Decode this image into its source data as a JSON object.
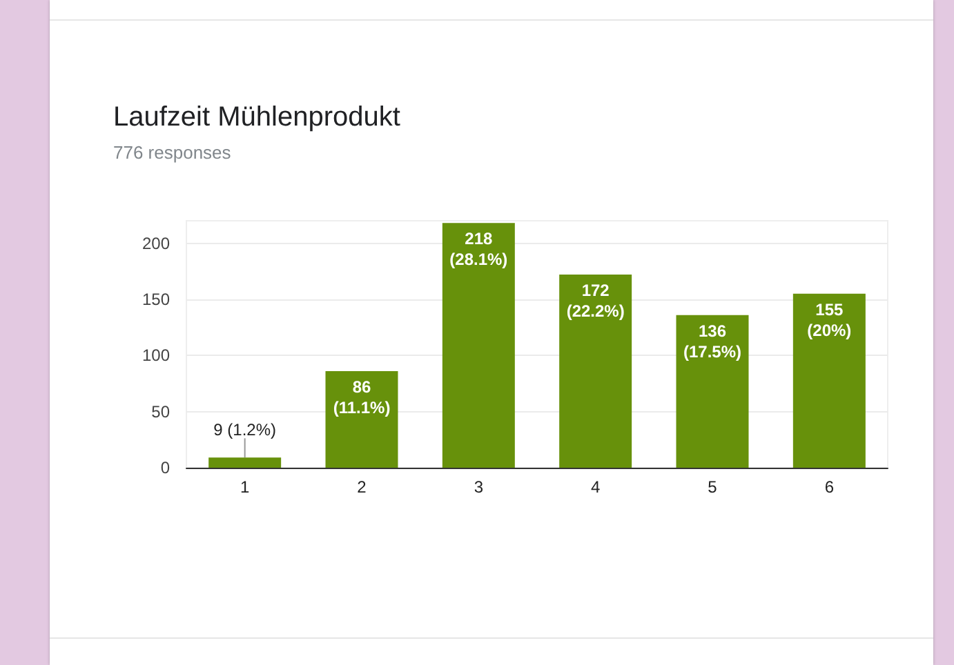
{
  "chart_data": {
    "type": "bar",
    "title": "Laufzeit Mühlenprodukt",
    "subtitle": "776 responses",
    "categories": [
      "1",
      "2",
      "3",
      "4",
      "5",
      "6"
    ],
    "values": [
      9,
      86,
      218,
      172,
      136,
      155
    ],
    "color": "#67910b",
    "value_labels": [
      "9 (1.2%)",
      "86 (11.1%)",
      "218 (28.1%)",
      "172 (22.2%)",
      "136 (17.5%)",
      "155 (20%)"
    ],
    "ylim": [
      0,
      220
    ],
    "yticks": [
      0,
      50,
      100,
      150,
      200
    ],
    "grid": "y"
  }
}
